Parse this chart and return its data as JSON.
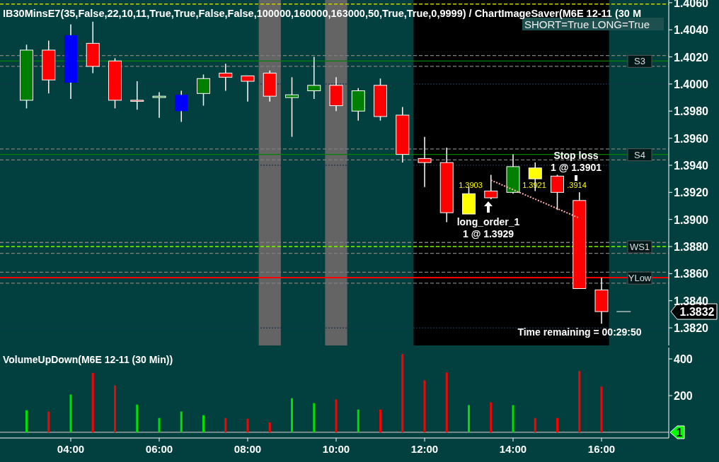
{
  "chart_data": [
    {
      "type": "candlestick",
      "title": "IB30MinsE7(35,False,22,10,11,True,True,False,False,100000,160000,163000,50,True,True,0,9999)  /  ChartImageSaver(M6E  12-11 (30  M",
      "x": [
        3,
        3.5,
        4,
        4.5,
        5,
        5.5,
        6,
        6.5,
        7,
        7.5,
        8,
        8.5,
        9,
        9.5,
        10,
        10.5,
        11,
        11.5,
        12,
        12.5,
        13,
        13.5,
        14,
        14.5,
        15,
        15.5,
        16
      ],
      "ohlc": [
        [
          1.3988,
          1.4029,
          1.3982,
          1.4025
        ],
        [
          1.4025,
          1.4032,
          1.3993,
          1.4003
        ],
        [
          1.4001,
          1.4044,
          1.3989,
          1.4036
        ],
        [
          1.403,
          1.4046,
          1.4008,
          1.4013
        ],
        [
          1.4017,
          1.4019,
          1.3982,
          1.3988
        ],
        [
          1.3988,
          1.4002,
          1.3981,
          1.3988
        ],
        [
          1.399,
          1.3994,
          1.3975,
          1.3991
        ],
        [
          1.3992,
          1.3995,
          1.3972,
          1.398
        ],
        [
          1.3993,
          1.4007,
          1.3984,
          1.4004
        ],
        [
          1.4008,
          1.4015,
          1.3995,
          1.4005
        ],
        [
          1.4006,
          1.4006,
          1.3987,
          1.4002
        ],
        [
          1.4008,
          1.401,
          1.3987,
          1.3991
        ],
        [
          1.399,
          1.4005,
          1.3961,
          1.3992
        ],
        [
          1.3995,
          1.402,
          1.3989,
          1.3999
        ],
        [
          1.3999,
          1.4005,
          1.398,
          1.3984
        ],
        [
          1.398,
          1.3997,
          1.3973,
          1.3995
        ],
        [
          1.3999,
          1.4004,
          1.3973,
          1.3976
        ],
        [
          1.3977,
          1.3983,
          1.3942,
          1.3948
        ],
        [
          1.3945,
          1.3961,
          1.3924,
          1.3942
        ],
        [
          1.3942,
          1.3953,
          1.3898,
          1.3905
        ],
        [
          1.3919,
          1.3924,
          1.3904,
          1.3904
        ],
        [
          1.3921,
          1.3933,
          1.3915,
          1.3916
        ],
        [
          1.392,
          1.3948,
          1.3919,
          1.3939
        ],
        [
          1.393,
          1.3942,
          1.3921,
          1.3938
        ],
        [
          1.3932,
          1.3933,
          1.3907,
          1.392
        ],
        [
          1.3914,
          1.392,
          1.3849,
          1.3849
        ],
        [
          1.3848,
          1.3857,
          1.3823,
          1.3832
        ]
      ],
      "colors": [
        "#008000",
        "#ff0000",
        "#0000ff",
        "#ff0000",
        "#ff0000",
        "#ff0000",
        "#008000",
        "#0000ff",
        "#008000",
        "#ff0000",
        "#ff0000",
        "#ff0000",
        "#008000",
        "#008000",
        "#ff0000",
        "#008000",
        "#ff0000",
        "#ff0000",
        "#ff0000",
        "#ff0000",
        "#ffff00",
        "#ff0000",
        "#008000",
        "#ffff00",
        "#ff0000",
        "#ff0000",
        "#ff0000"
      ],
      "series": [
        {
          "type": "line",
          "x": [
            13.5,
            15.5
          ],
          "values": [
            1.3929,
            1.3901
          ],
          "color": "#ffb0b0",
          "line_style": "dotted"
        }
      ],
      "xlim": [
        2.4,
        17.52
      ],
      "ylim": [
        1.3807,
        1.4062
      ],
      "yticks": [
        {
          "value": 1.406,
          "label": "1.4060"
        },
        {
          "value": 1.404,
          "label": "1.4040"
        },
        {
          "value": 1.402,
          "label": "1.4020"
        },
        {
          "value": 1.4,
          "label": "1.4000"
        },
        {
          "value": 1.398,
          "label": "1.3980"
        },
        {
          "value": 1.396,
          "label": "1.3960"
        },
        {
          "value": 1.394,
          "label": "1.3940"
        },
        {
          "value": 1.392,
          "label": "1.3920"
        },
        {
          "value": 1.39,
          "label": "1.3900"
        },
        {
          "value": 1.388,
          "label": "1.3880"
        },
        {
          "value": 1.386,
          "label": "1.3860"
        },
        {
          "value": 1.384,
          "label": "1.3840"
        },
        {
          "value": 1.382,
          "label": "1.3820"
        }
      ],
      "tick_labels": "y",
      "bands": [
        {
          "axis": "x",
          "from": 11.75,
          "to": 16.17,
          "color": "#000000"
        },
        {
          "axis": "x",
          "from": 8.25,
          "to": 8.75,
          "color": "#646464"
        },
        {
          "axis": "x",
          "from": 9.75,
          "to": 10.25,
          "color": "#646464"
        }
      ],
      "ref_lines": [
        {
          "axis": "y",
          "value": 1.4059,
          "color": "#c8d200",
          "line_style": "dashed"
        },
        {
          "axis": "y",
          "value": 1.4,
          "color": "#1a3550",
          "line_style": "dotted"
        },
        {
          "axis": "y",
          "value": 1.394,
          "color": "#1a3550",
          "line_style": "dotted"
        },
        {
          "axis": "y",
          "value": 1.382,
          "color": "#1a3550",
          "line_style": "dotted"
        },
        {
          "axis": "y",
          "value": 1.4021,
          "color": "#808080",
          "line_style": "dashed"
        },
        {
          "axis": "y",
          "value": 1.4017,
          "color": "#008000",
          "line_style": "solid",
          "label": "S3"
        },
        {
          "axis": "y",
          "value": 1.4013,
          "color": "#808080",
          "line_style": "dashed"
        },
        {
          "axis": "y",
          "value": 1.3952,
          "color": "#808080",
          "line_style": "dashed"
        },
        {
          "axis": "y",
          "value": 1.3948,
          "color": "#008000",
          "line_style": "solid",
          "label": "S4"
        },
        {
          "axis": "y",
          "value": 1.3944,
          "color": "#808080",
          "line_style": "dashed"
        },
        {
          "axis": "y",
          "value": 1.3883,
          "color": "#808080",
          "line_style": "dashed"
        },
        {
          "axis": "y",
          "value": 1.388,
          "color": "#7cfc00",
          "line_style": "dashed",
          "label": "WS1"
        },
        {
          "axis": "y",
          "value": 1.3875,
          "color": "#808080",
          "line_style": "dashed"
        },
        {
          "axis": "y",
          "value": 1.3861,
          "color": "#808080",
          "line_style": "dashed"
        },
        {
          "axis": "y",
          "value": 1.3857,
          "color": "#ff0000",
          "line_style": "solid",
          "label": "YLow"
        },
        {
          "axis": "y",
          "value": 1.3853,
          "color": "#808080",
          "line_style": "dashed"
        }
      ],
      "annotations": [
        "long_order_1\n1 @ 1.3929",
        "Stop loss\n1 @ 1.3901",
        "1.3903",
        "1.3921",
        ".3914",
        "SHORT=True LONG=True",
        "Time remaining = 00:29:50",
        "1.3832"
      ]
    },
    {
      "type": "bar",
      "title": "VolumeUpDown(M6E 12-11 (30 Min))",
      "x": [
        3,
        3.5,
        4,
        4.5,
        5,
        5.5,
        6,
        6.5,
        7,
        7.5,
        8,
        8.5,
        9,
        9.5,
        10,
        10.5,
        11,
        11.5,
        12,
        12.5,
        13,
        13.5,
        14,
        14.5,
        15,
        15.5,
        16
      ],
      "values": [
        120,
        113,
        206,
        324,
        256,
        151,
        78,
        113,
        93,
        78,
        74,
        54,
        186,
        159,
        179,
        124,
        124,
        427,
        283,
        326,
        148,
        163,
        148,
        78,
        78,
        334,
        249
      ],
      "colors": [
        "#00e000",
        "#ff0000",
        "#00e000",
        "#ff0000",
        "#ff0000",
        "#00e000",
        "#00e000",
        "#00e000",
        "#00e000",
        "#ff0000",
        "#ff0000",
        "#ff0000",
        "#00e000",
        "#00e000",
        "#ff0000",
        "#00e000",
        "#ff0000",
        "#ff0000",
        "#ff0000",
        "#ff0000",
        "#00e000",
        "#ff0000",
        "#00e000",
        "#ff0000",
        "#ff0000",
        "#ff0000",
        "#ff0000"
      ],
      "xlim": [
        2.4,
        17.52
      ],
      "ylim": [
        -31,
        462
      ],
      "xticks": [
        {
          "value": 4,
          "label": "04:00"
        },
        {
          "value": 6,
          "label": "06:00"
        },
        {
          "value": 8,
          "label": "08:00"
        },
        {
          "value": 10,
          "label": "10:00"
        },
        {
          "value": 12,
          "label": "12:00"
        },
        {
          "value": 14,
          "label": "14:00"
        },
        {
          "value": 16,
          "label": "16:00"
        }
      ],
      "yticks": [
        200,
        400
      ],
      "ref_lines": [
        {
          "axis": "y",
          "value": 0,
          "color": "#b4b4b4",
          "line_style": "solid"
        }
      ],
      "annotations": [
        "1"
      ]
    }
  ]
}
